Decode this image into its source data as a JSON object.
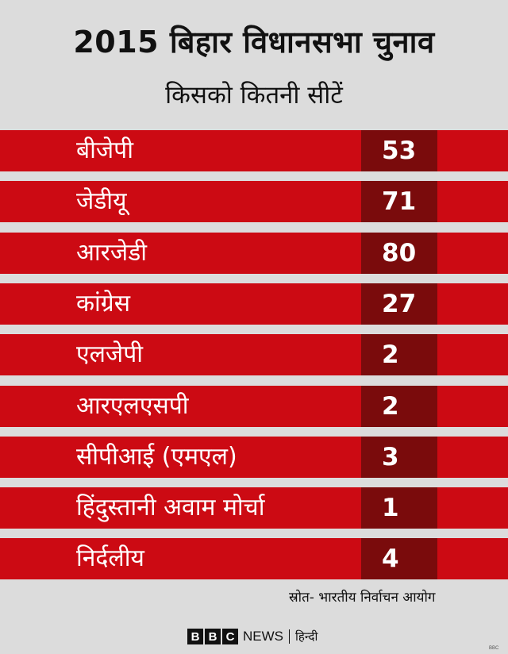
{
  "chart_data": {
    "type": "table",
    "title": "2015 बिहार विधानसभा चुनाव",
    "subtitle": "किसको कितनी सीटें",
    "categories": [
      "बीजेपी",
      "जेडीयू",
      "आरजेडी",
      "कांग्रेस",
      "एलजेपी",
      "आरएलएसपी",
      "सीपीआई (एमएल)",
      "हिंदुस्तानी अवाम मोर्चा",
      "निर्दलीय"
    ],
    "values": [
      53,
      71,
      80,
      27,
      2,
      2,
      3,
      1,
      4
    ],
    "source": "स्रोत- भारतीय निर्वाचन आयोग"
  },
  "logo": {
    "b1": "B",
    "b2": "B",
    "c": "C",
    "news": "NEWS",
    "hindi": "हिन्दी",
    "corner": "BBC"
  },
  "colors": {
    "row": "#cc0a13",
    "seat_box": "#7a0b0c",
    "background": "#dcdcdc"
  }
}
